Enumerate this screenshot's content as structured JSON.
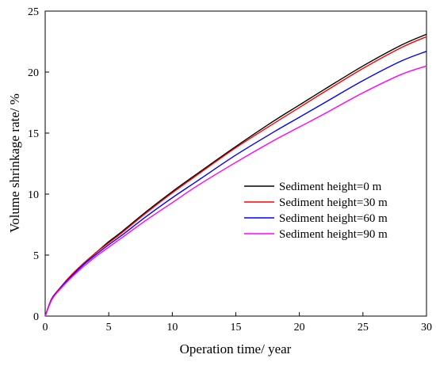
{
  "chart_data": {
    "type": "line",
    "title": "",
    "xlabel": "Operation time/ year",
    "ylabel": "Volume shrinkage rate/ %",
    "xlim": [
      0,
      30
    ],
    "ylim": [
      0,
      25
    ],
    "xticks": [
      "0",
      "5",
      "10",
      "15",
      "20",
      "25",
      "30"
    ],
    "yticks": [
      "0",
      "5",
      "10",
      "15",
      "20",
      "25"
    ],
    "grid": false,
    "legend_position": "center-right",
    "x": [
      0,
      0.5,
      1,
      2,
      3,
      4,
      5,
      6,
      8,
      10,
      12,
      15,
      18,
      20,
      22,
      25,
      28,
      30
    ],
    "series": [
      {
        "name": "Sediment height=0 m",
        "color": "#000000",
        "values": [
          0,
          1.4,
          2.1,
          3.3,
          4.3,
          5.2,
          6.1,
          6.9,
          8.6,
          10.2,
          11.7,
          13.9,
          16.0,
          17.3,
          18.6,
          20.5,
          22.2,
          23.1
        ]
      },
      {
        "name": "Sediment height=30 m",
        "color": "#ff0000",
        "values": [
          0,
          1.4,
          2.1,
          3.3,
          4.3,
          5.2,
          6.0,
          6.8,
          8.5,
          10.1,
          11.6,
          13.8,
          15.8,
          17.1,
          18.4,
          20.3,
          22.0,
          22.9
        ]
      },
      {
        "name": "Sediment height=60 m",
        "color": "#0000ff",
        "values": [
          0,
          1.35,
          2.05,
          3.2,
          4.2,
          5.05,
          5.85,
          6.6,
          8.2,
          9.7,
          11.1,
          13.2,
          15.1,
          16.3,
          17.5,
          19.3,
          20.9,
          21.7
        ]
      },
      {
        "name": "Sediment height=90 m",
        "color": "#ff00ff",
        "values": [
          0,
          1.3,
          2.0,
          3.1,
          4.05,
          4.9,
          5.65,
          6.4,
          7.9,
          9.3,
          10.7,
          12.6,
          14.4,
          15.5,
          16.6,
          18.3,
          19.8,
          20.5
        ]
      }
    ]
  }
}
